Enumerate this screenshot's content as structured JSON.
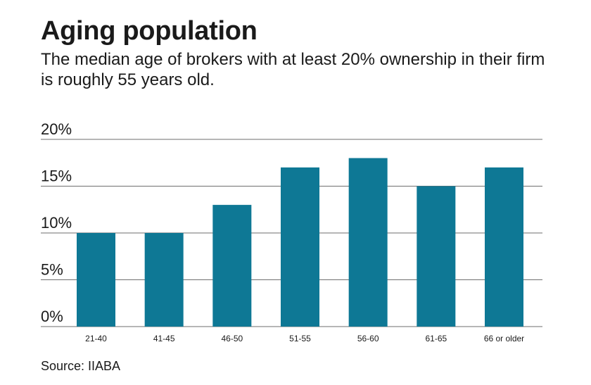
{
  "header": {
    "title": "Aging population",
    "subtitle": "The median age of brokers with at least 20% ownership in their firm is roughly 55 years old."
  },
  "source": "Source: IIABA",
  "colors": {
    "bar": "#0e7895",
    "grid": "#6e6e6e",
    "text": "#1a1a1a"
  },
  "chart_data": {
    "type": "bar",
    "title": "Aging population",
    "xlabel": "",
    "ylabel": "",
    "categories": [
      "21-40",
      "41-45",
      "46-50",
      "51-55",
      "56-60",
      "61-65",
      "66 or older"
    ],
    "values": [
      10,
      10,
      13,
      17,
      18,
      15,
      17
    ],
    "unit": "%",
    "ylim": [
      0,
      20
    ],
    "yticks": [
      0,
      5,
      10,
      15,
      20
    ],
    "ytick_labels": [
      "0%",
      "5%",
      "10%",
      "15%",
      "20%"
    ],
    "grid": true
  }
}
